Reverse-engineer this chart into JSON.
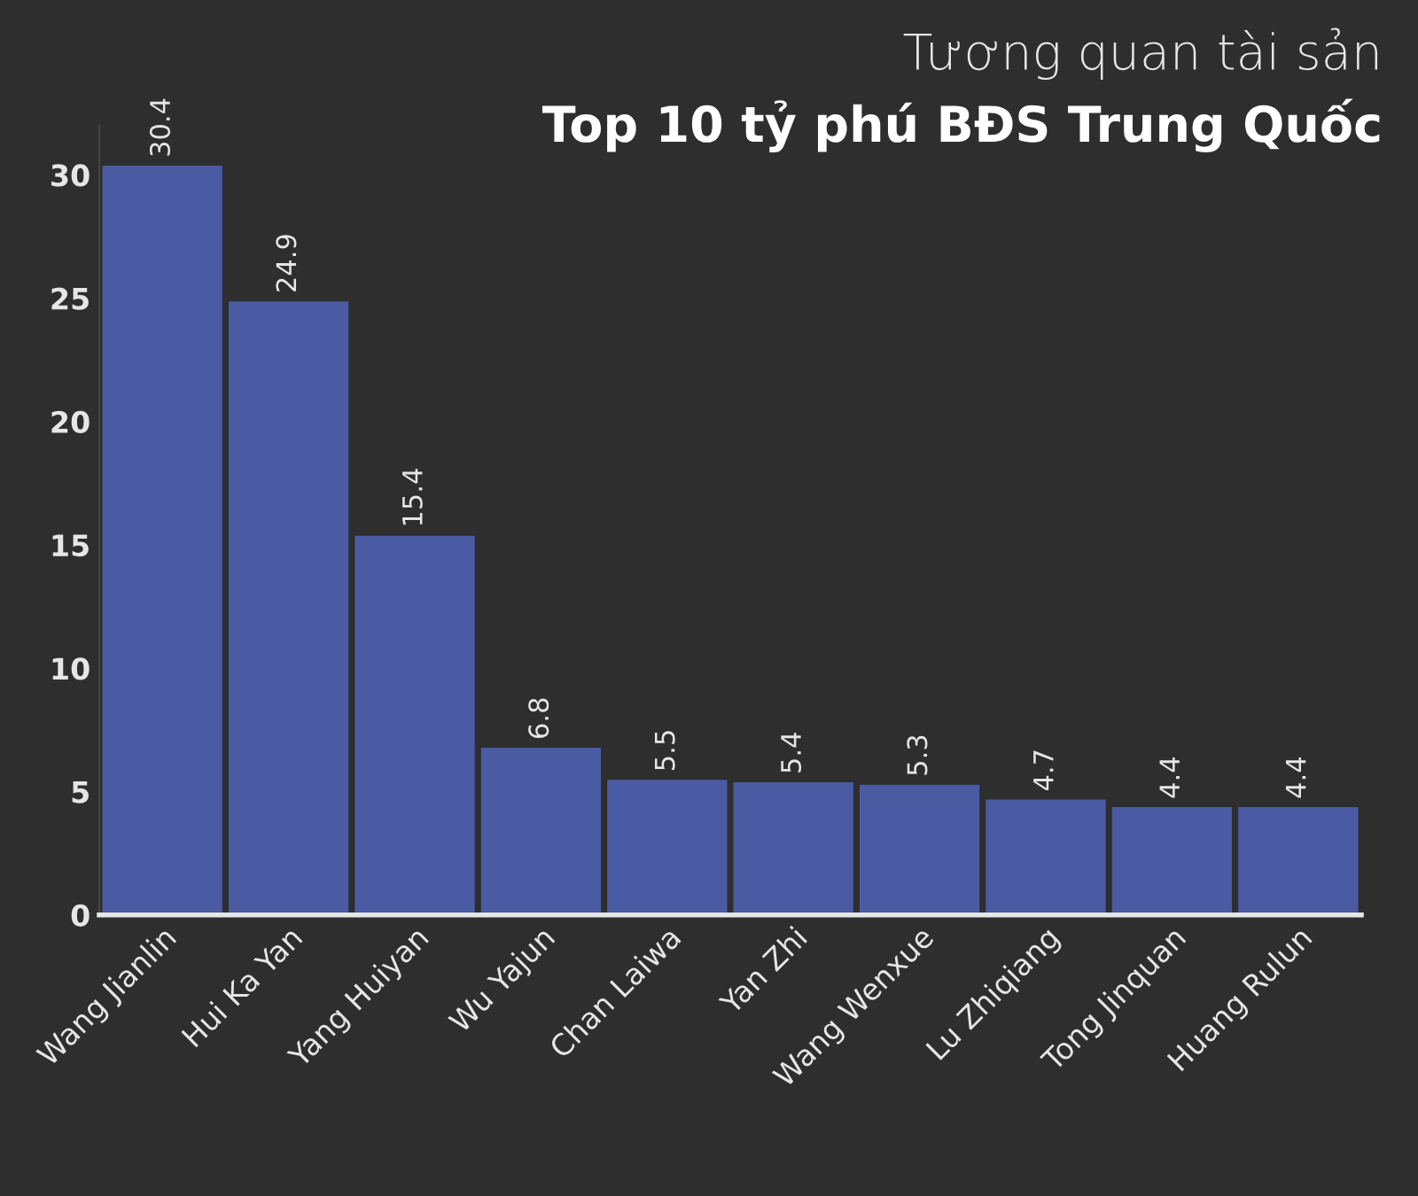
{
  "chart_data": {
    "type": "bar",
    "title": "Tương quan tài sản",
    "subtitle": "Top 10 tỷ phú BĐS Trung Quốc",
    "categories": [
      "Wang Jianlin",
      "Hui Ka Yan",
      "Yang Huiyan",
      "Wu Yajun",
      "Chan Laiwa",
      "Yan Zhi",
      "Wang Wenxue",
      "Lu Zhiqiang",
      "Tong Jinquan",
      "Huang Rulun"
    ],
    "values": [
      30.4,
      24.9,
      15.4,
      6.8,
      5.5,
      5.4,
      5.3,
      4.7,
      4.4,
      4.4
    ],
    "color": "#4a5ba3",
    "ylim": [
      0,
      32
    ],
    "yticks": [
      0,
      5,
      10,
      15,
      20,
      25,
      30
    ],
    "grid": false,
    "data_labels": true
  }
}
